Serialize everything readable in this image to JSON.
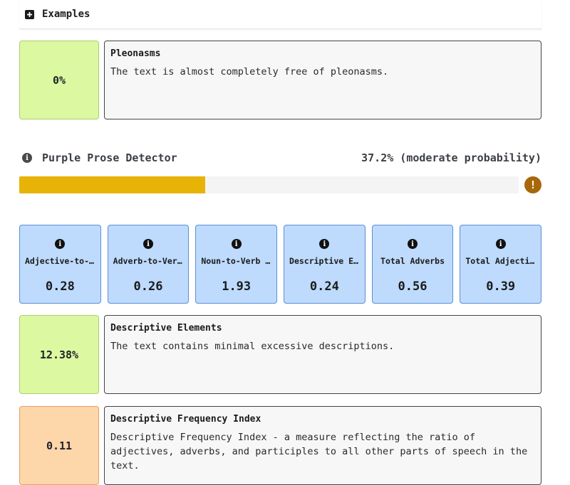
{
  "examples": {
    "label": "Examples",
    "icon": "plus-square-icon"
  },
  "pleonasms": {
    "score": "0%",
    "title": "Pleonasms",
    "text": "The text is almost completely free of pleonasms."
  },
  "purple_prose": {
    "title": "Purple Prose Detector",
    "value_text": "37.2% (moderate probability)",
    "progress_fraction": 0.372,
    "progress_color": "#e8b307",
    "warning_icon": "exclamation-circle-icon"
  },
  "metrics": [
    {
      "label": "Adjective-to-Noun Ratio",
      "value": "0.28"
    },
    {
      "label": "Adverb-to-Verb Ratio",
      "value": "0.26"
    },
    {
      "label": "Noun-to-Verb Ratio",
      "value": "1.93"
    },
    {
      "label": "Descriptive Elements",
      "value": "0.24"
    },
    {
      "label": "Total Adverbs",
      "value": "0.56"
    },
    {
      "label": "Total Adjectives",
      "value": "0.39"
    }
  ],
  "descriptive_elements": {
    "score": "12.38%",
    "title": "Descriptive Elements",
    "text": "The text contains minimal excessive descriptions."
  },
  "descriptive_frequency": {
    "score": "0.11",
    "title": "Descriptive Frequency Index",
    "text": "Descriptive Frequency Index - a measure reflecting the ratio of adjectives, adverbs, and participles to all other parts of speech in the text."
  },
  "colors": {
    "green_score_bg": "#dcf8a1",
    "orange_score_bg": "#fdd6aa",
    "metric_card_bg": "#bedafd",
    "warning": "#a8680a"
  }
}
